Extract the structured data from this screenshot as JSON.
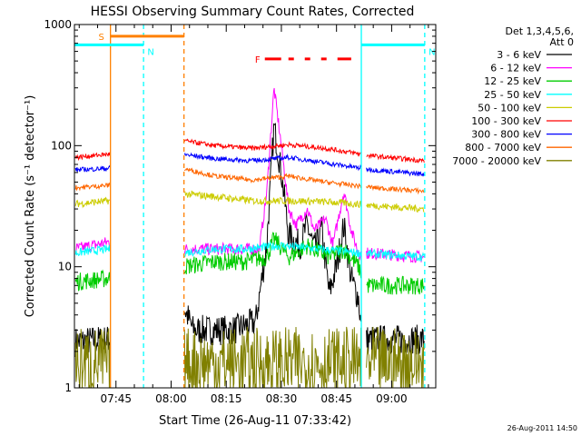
{
  "chart_data": {
    "type": "line",
    "title": "HESSI Observing Summary Count Rates, Corrected",
    "xlabel": "Start Time (26-Aug-11 07:33:42)",
    "ylabel": "Corrected Count Rate (s⁻¹ detector⁻¹)",
    "yscale": "log",
    "ylim": [
      1,
      1000
    ],
    "xlim": [
      "07:33:42",
      "09:12:00"
    ],
    "yticks": [
      {
        "value": 1,
        "label": "1"
      },
      {
        "value": 10,
        "label": "10"
      },
      {
        "value": 100,
        "label": "100"
      },
      {
        "value": 1000,
        "label": "1000"
      }
    ],
    "xticks": [
      {
        "time": "07:45",
        "label": "07:45"
      },
      {
        "time": "08:00",
        "label": "08:00"
      },
      {
        "time": "08:15",
        "label": "08:15"
      },
      {
        "time": "08:30",
        "label": "08:30"
      },
      {
        "time": "08:45",
        "label": "08:45"
      },
      {
        "time": "09:00",
        "label": "09:00"
      }
    ],
    "legend": {
      "placement": "right",
      "header": [
        "Det 1,3,4,5,6,",
        "Att 0"
      ]
    },
    "series": [
      {
        "name": "3 - 6 keV",
        "color": "#000000",
        "noise": 0.25,
        "points": [
          [
            "07:34",
            2.4
          ],
          [
            "07:43",
            2.5
          ],
          [
            "08:03",
            5.0
          ],
          [
            "08:06",
            3.0
          ],
          [
            "08:12",
            3.0
          ],
          [
            "08:17",
            3.0
          ],
          [
            "08:23",
            3.5
          ],
          [
            "08:26",
            15
          ],
          [
            "08:28",
            145
          ],
          [
            "08:30",
            60
          ],
          [
            "08:32",
            18
          ],
          [
            "08:35",
            15
          ],
          [
            "08:37",
            22
          ],
          [
            "08:39",
            14
          ],
          [
            "08:41",
            20
          ],
          [
            "08:43",
            6
          ],
          [
            "08:45",
            10
          ],
          [
            "08:47",
            22
          ],
          [
            "08:49",
            8
          ],
          [
            "08:51",
            5.5
          ],
          [
            "08:52",
            2.5
          ],
          [
            "09:09",
            2.5
          ]
        ]
      },
      {
        "name": "6 - 12 keV",
        "color": "#ff00ff",
        "noise": 0.1,
        "points": [
          [
            "07:34",
            14
          ],
          [
            "07:43",
            16
          ],
          [
            "08:03",
            14
          ],
          [
            "08:12",
            14
          ],
          [
            "08:18",
            14
          ],
          [
            "08:24",
            14
          ],
          [
            "08:26",
            40
          ],
          [
            "08:28",
            300
          ],
          [
            "08:30",
            100
          ],
          [
            "08:32",
            30
          ],
          [
            "08:34",
            22
          ],
          [
            "08:37",
            30
          ],
          [
            "08:39",
            20
          ],
          [
            "08:42",
            25
          ],
          [
            "08:44",
            15
          ],
          [
            "08:47",
            42
          ],
          [
            "08:49",
            20
          ],
          [
            "08:51",
            13
          ],
          [
            "08:53",
            13
          ],
          [
            "09:09",
            12
          ]
        ]
      },
      {
        "name": "12 - 25 keV",
        "color": "#00cc00",
        "noise": 0.15,
        "points": [
          [
            "07:34",
            7.5
          ],
          [
            "07:43",
            8
          ],
          [
            "08:03",
            10
          ],
          [
            "08:12",
            11
          ],
          [
            "08:20",
            11
          ],
          [
            "08:26",
            12
          ],
          [
            "08:28",
            17
          ],
          [
            "08:32",
            12
          ],
          [
            "08:37",
            15
          ],
          [
            "08:43",
            12
          ],
          [
            "08:47",
            14
          ],
          [
            "08:51",
            10
          ],
          [
            "08:53",
            7
          ],
          [
            "09:09",
            7
          ]
        ]
      },
      {
        "name": "25 - 50 keV",
        "color": "#00ffff",
        "noise": 0.07,
        "points": [
          [
            "07:34",
            13
          ],
          [
            "07:43",
            14
          ],
          [
            "08:03",
            13
          ],
          [
            "08:12",
            14
          ],
          [
            "08:20",
            14
          ],
          [
            "08:30",
            15
          ],
          [
            "08:40",
            14
          ],
          [
            "08:51",
            13
          ],
          [
            "09:09",
            12
          ]
        ]
      },
      {
        "name": "50 - 100 keV",
        "color": "#cccc00",
        "noise": 0.06,
        "points": [
          [
            "07:34",
            33
          ],
          [
            "07:43",
            35
          ],
          [
            "08:03",
            40
          ],
          [
            "08:12",
            38
          ],
          [
            "08:22",
            35
          ],
          [
            "08:35",
            35
          ],
          [
            "08:45",
            34
          ],
          [
            "08:55",
            32
          ],
          [
            "09:09",
            30
          ]
        ]
      },
      {
        "name": "100 - 300 keV",
        "color": "#ff0000",
        "noise": 0.04,
        "points": [
          [
            "07:34",
            80
          ],
          [
            "07:43",
            85
          ],
          [
            "08:03",
            110
          ],
          [
            "08:12",
            100
          ],
          [
            "08:22",
            95
          ],
          [
            "08:32",
            102
          ],
          [
            "08:42",
            95
          ],
          [
            "08:55",
            82
          ],
          [
            "09:09",
            75
          ]
        ]
      },
      {
        "name": "300 - 800 keV",
        "color": "#0000ff",
        "noise": 0.04,
        "points": [
          [
            "07:34",
            63
          ],
          [
            "07:43",
            65
          ],
          [
            "08:03",
            85
          ],
          [
            "08:12",
            78
          ],
          [
            "08:22",
            75
          ],
          [
            "08:32",
            80
          ],
          [
            "08:42",
            72
          ],
          [
            "08:55",
            63
          ],
          [
            "09:09",
            58
          ]
        ]
      },
      {
        "name": "800 - 7000 keV",
        "color": "#ff6600",
        "noise": 0.04,
        "points": [
          [
            "07:34",
            45
          ],
          [
            "07:43",
            47
          ],
          [
            "08:03",
            65
          ],
          [
            "08:12",
            56
          ],
          [
            "08:22",
            52
          ],
          [
            "08:32",
            56
          ],
          [
            "08:42",
            50
          ],
          [
            "08:55",
            45
          ],
          [
            "09:09",
            42
          ]
        ]
      },
      {
        "name": "7000 - 20000 keV",
        "color": "#808000",
        "noise": 0.6,
        "points": [
          [
            "07:34",
            1.6
          ],
          [
            "07:43",
            1.6
          ],
          [
            "08:03",
            1.6
          ],
          [
            "08:20",
            1.6
          ],
          [
            "08:40",
            1.6
          ],
          [
            "08:52",
            1.6
          ],
          [
            "09:09",
            1.6
          ]
        ]
      }
    ],
    "gaps": [
      [
        "07:43:30",
        "08:03:30"
      ],
      [
        "08:51:45",
        "08:53:00"
      ]
    ],
    "state_bars": [
      {
        "label": "S",
        "color": "#ff8000",
        "start": "07:43:30",
        "end": "08:03:30",
        "y": 800
      },
      {
        "label": "N",
        "color": "#00ffff",
        "start": "07:33:42",
        "end": "07:52:30",
        "y": 680
      },
      {
        "label": "N",
        "color": "#00ffff",
        "start": "08:51:45",
        "end": "09:09:00",
        "y": 680
      },
      {
        "label": "F",
        "color": "#ff0000",
        "start": "08:25:30",
        "end": "08:49:00",
        "y": 520,
        "dashed": true
      }
    ],
    "vlines": [
      {
        "time": "07:43:30",
        "color": "#ff8000",
        "style": "solid"
      },
      {
        "time": "07:52:30",
        "color": "#00ffff",
        "style": "dashed"
      },
      {
        "time": "08:03:30",
        "color": "#ff8000",
        "style": "dashed"
      },
      {
        "time": "08:51:45",
        "color": "#00ffff",
        "style": "solid"
      },
      {
        "time": "09:09:00",
        "color": "#00ffff",
        "style": "dashed"
      }
    ]
  },
  "footer": {
    "timestamp": "26-Aug-2011 14:50"
  }
}
